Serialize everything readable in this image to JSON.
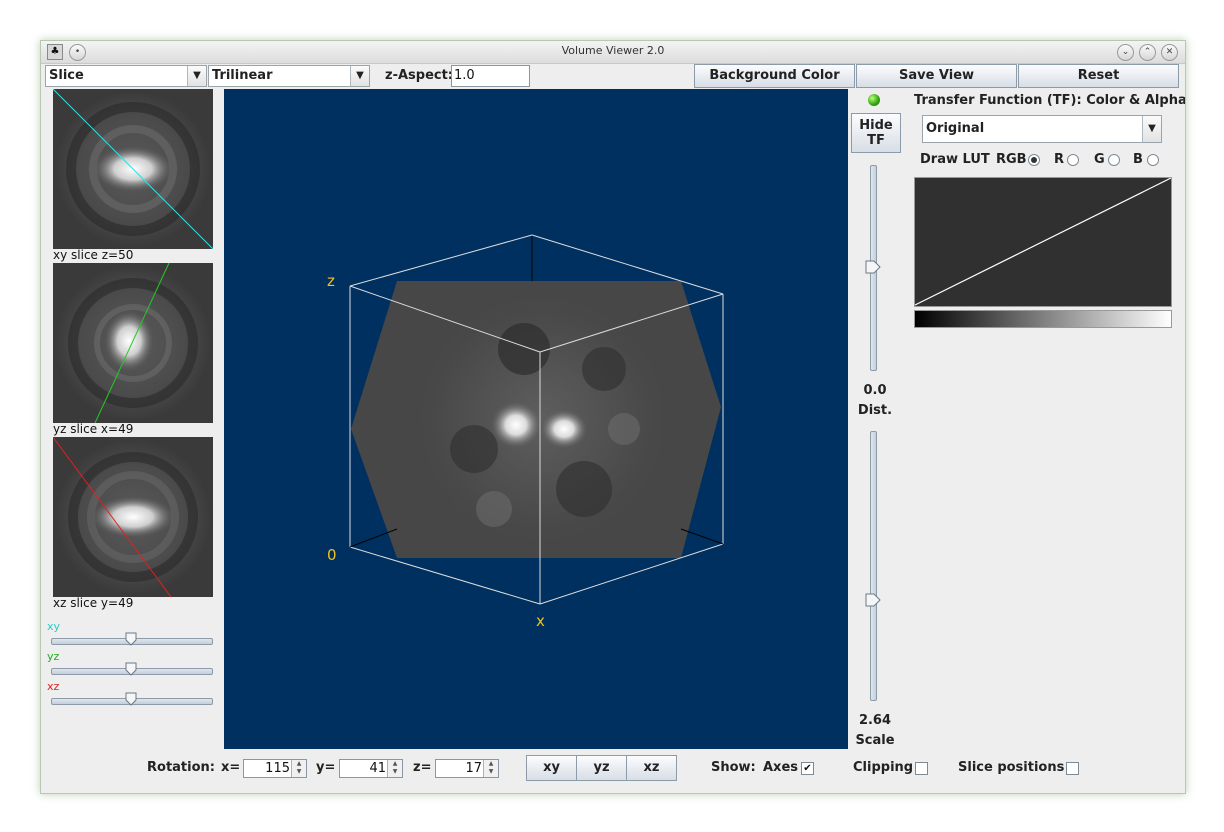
{
  "window": {
    "title": "Volume Viewer 2.0"
  },
  "toolbar": {
    "mode_select": "Slice",
    "interpolation_select": "Trilinear",
    "z_aspect_label": "z-Aspect:",
    "z_aspect_value": "1.0",
    "background_color_label": "Background Color",
    "save_view_label": "Save View",
    "reset_label": "Reset"
  },
  "slices": {
    "xy_caption": "xy slice  z=50",
    "yz_caption": "yz slice  x=49",
    "xz_caption": "xz slice  y=49",
    "xy_label": "xy",
    "yz_label": "yz",
    "xz_label": "xz",
    "xy_level": 0.5,
    "yz_level": 0.5,
    "xz_level": 0.5
  },
  "viewer": {
    "background_color": "#00305f",
    "axis_label_color": "#f2c21b",
    "axis_z": "z",
    "axis_origin": "0",
    "axis_x": "x"
  },
  "distance_slider": {
    "hide_tf_line1": "Hide",
    "hide_tf_line2": "TF",
    "value": "0.0",
    "label": "Dist.",
    "level": 0.5
  },
  "scale_slider": {
    "value": "2.64",
    "label": "Scale",
    "level": 0.37
  },
  "transfer_function": {
    "title": "Transfer Function (TF): Color & Alpha",
    "preset": "Original",
    "draw_lut_label": "Draw LUT",
    "channels": [
      "RGB",
      "R",
      "G",
      "B"
    ],
    "selected_channel": "RGB",
    "status_icon": "green-light-icon"
  },
  "bottom": {
    "rotation_label": "Rotation:",
    "x_label": "x=",
    "x_value": "115",
    "y_label": "y=",
    "y_value": "41",
    "z_label": "z=",
    "z_value": "17",
    "xy_button": "xy",
    "yz_button": "yz",
    "xz_button": "xz",
    "show_label": "Show:",
    "axes_label": "Axes",
    "axes_checked": true,
    "clipping_label": "Clipping",
    "slice_positions_label": "Slice positions"
  }
}
